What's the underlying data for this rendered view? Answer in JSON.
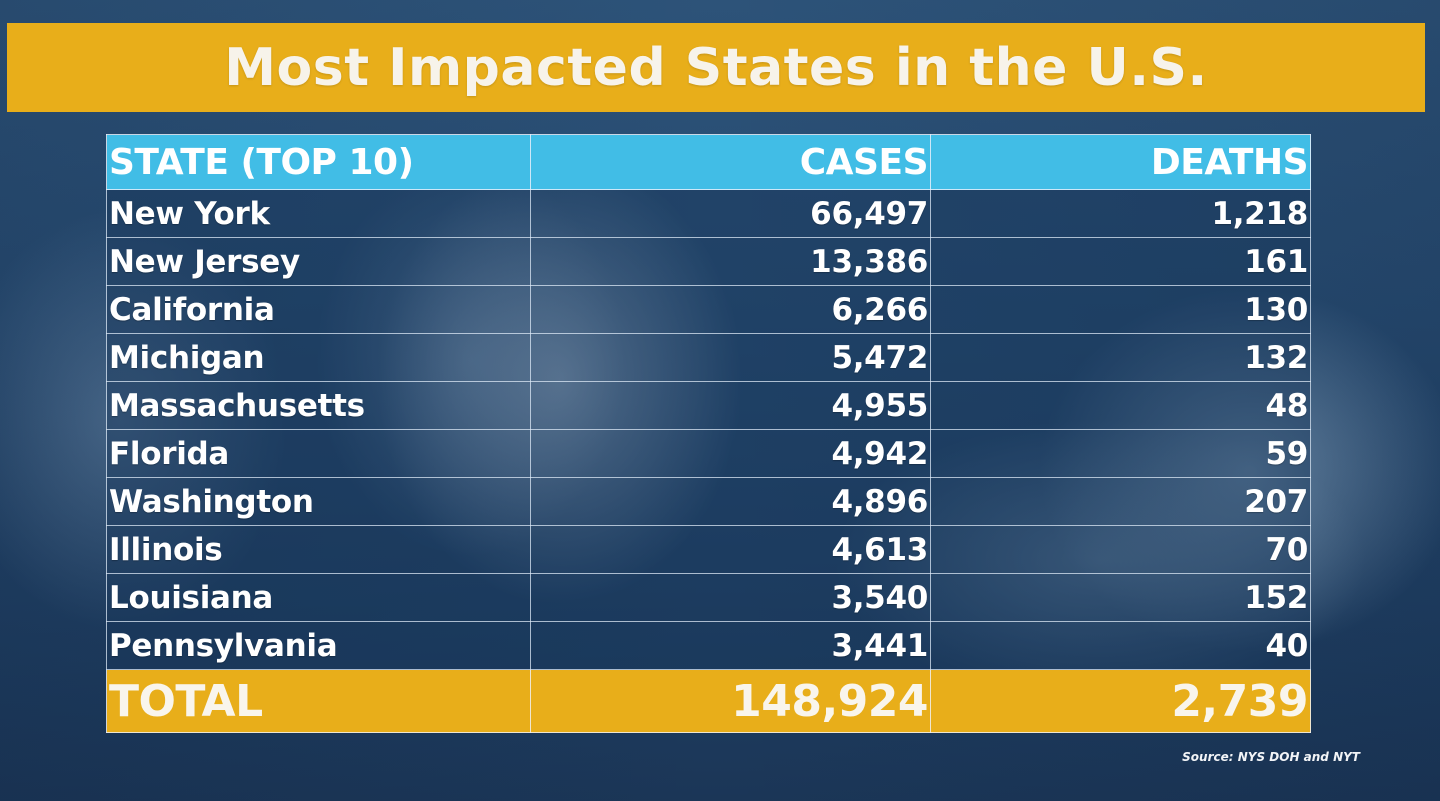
{
  "title": "Most Impacted States in the U.S.",
  "source": "Source: NYS DOH and NYT",
  "colors": {
    "title_bar": "#e8ae1a",
    "header_row": "#41bde6",
    "total_row": "#e8ae1a",
    "text": "#ffffff"
  },
  "chart_data": {
    "type": "table",
    "title": "Most Impacted States in the U.S.",
    "columns": [
      "STATE (TOP 10)",
      "CASES",
      "DEATHS"
    ],
    "rows": [
      {
        "state": "New York",
        "cases": "66,497",
        "deaths": "1,218"
      },
      {
        "state": "New Jersey",
        "cases": "13,386",
        "deaths": "161"
      },
      {
        "state": "California",
        "cases": "6,266",
        "deaths": "130"
      },
      {
        "state": "Michigan",
        "cases": "5,472",
        "deaths": "132"
      },
      {
        "state": "Massachusetts",
        "cases": "4,955",
        "deaths": "48"
      },
      {
        "state": "Florida",
        "cases": "4,942",
        "deaths": "59"
      },
      {
        "state": "Washington",
        "cases": "4,896",
        "deaths": "207"
      },
      {
        "state": "Illinois",
        "cases": "4,613",
        "deaths": "70"
      },
      {
        "state": "Louisiana",
        "cases": "3,540",
        "deaths": "152"
      },
      {
        "state": "Pennsylvania",
        "cases": "3,441",
        "deaths": "40"
      }
    ],
    "total": {
      "label": "TOTAL",
      "cases": "148,924",
      "deaths": "2,739"
    }
  }
}
